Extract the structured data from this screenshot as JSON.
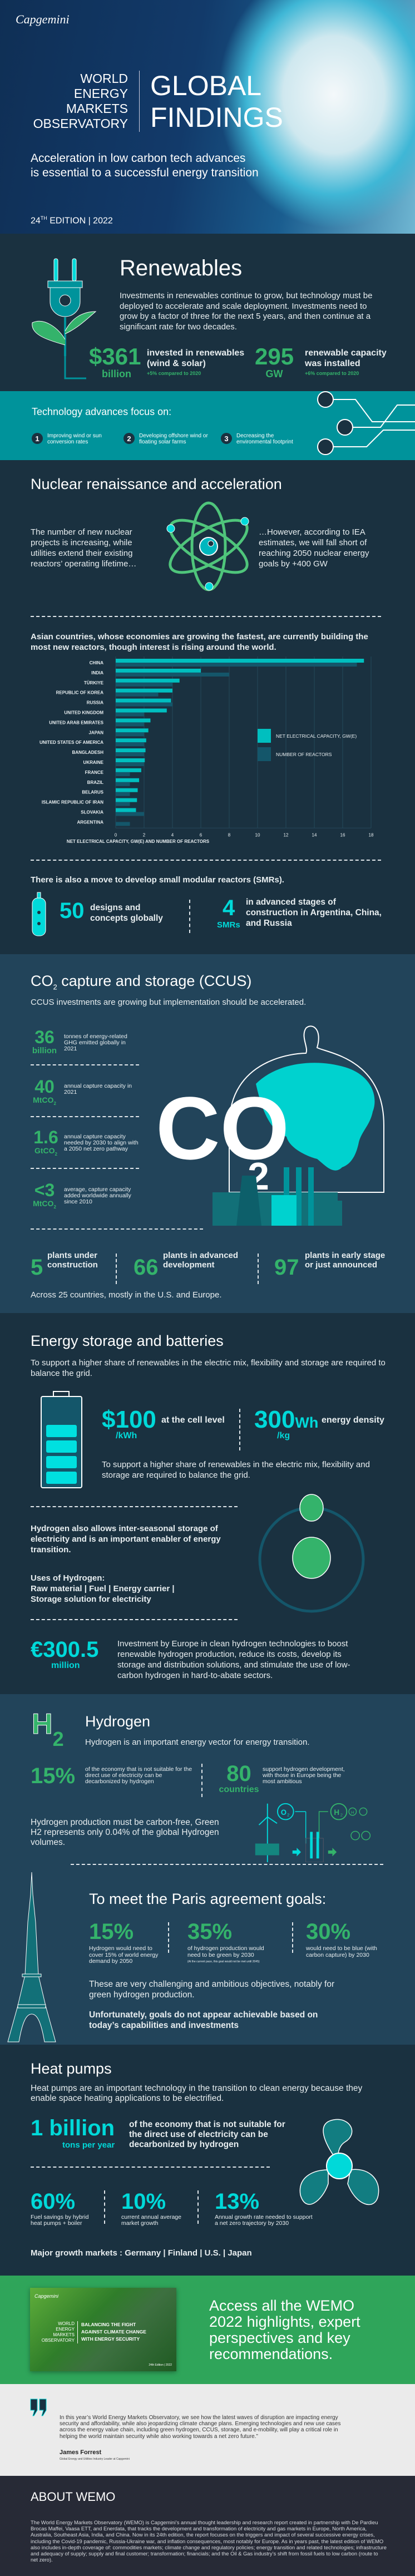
{
  "hero": {
    "logo": "Capgemini",
    "observatory_lines": [
      "WORLD",
      "ENERGY",
      "MARKETS",
      "OBSERVATORY"
    ],
    "title_lines": [
      "GLOBAL",
      "FINDINGS"
    ],
    "subtitle_lines": [
      "Acceleration in low carbon tech advances",
      "is essential to a successful energy transition"
    ],
    "edition_num": "24",
    "edition_sup": "TH",
    "edition_rest": " EDITION | 2022"
  },
  "renewables": {
    "title": "Renewables",
    "body": "Investments in renewables continue to grow, but technology must be deployed to accelerate and scale deployment. Investments need to grow by a factor of three for the next 5 years, and then continue at a significant rate for two decades.",
    "stats": [
      {
        "value": "$361",
        "unit": "billion",
        "label": "invested in renewables (wind & solar)",
        "note": "+5% compared to 2020"
      },
      {
        "value": "295",
        "unit": "GW",
        "label": "renewable capacity was installed",
        "note": "+6% compared to 2020"
      }
    ]
  },
  "tech": {
    "heading": "Technology advances focus on:",
    "items": [
      {
        "num": "1",
        "text": "Improving wind or sun conversion rates"
      },
      {
        "num": "2",
        "text": "Developing offshore wind or floating solar farms"
      },
      {
        "num": "3",
        "text": "Decreasing the environmental footprint"
      }
    ]
  },
  "nuclear": {
    "title": "Nuclear renaissance and acceleration",
    "left_text": "The number of new nuclear projects is increasing, while utilities extend their existing reactors’ operating lifetime…",
    "right_text": "…However, according to IEA estimates, we will fall short of reaching 2050 nuclear energy goals by +400 GW",
    "asia_text": "Asian countries, whose economies are growing the fastest, are currently building the most new reactors, though interest is rising around the world.",
    "smr_intro": "There is also a move to develop small modular reactors (SMRs).",
    "smr_stats": [
      {
        "value": "50",
        "unit": "",
        "label": "designs and concepts globally"
      },
      {
        "value": "4",
        "unit": "SMRs",
        "label": "in advanced stages of construction in Argentina, China, and Russia"
      }
    ]
  },
  "chart_data": {
    "type": "bar",
    "orientation": "horizontal",
    "categories": [
      "CHINA",
      "INDIA",
      "TÜRKIYE",
      "REPUBLIC OF KOREA",
      "RUSSIA",
      "UNITED KINGDOM",
      "UNITED ARAB EMIRATES",
      "JAPAN",
      "UNITED STATES OF AMERICA",
      "BANGLADESH",
      "UKRAINE",
      "FRANCE",
      "BRAZIL",
      "BELARUS",
      "ISLAMIC REPUBLIC OF IRAN",
      "SLOVAKIA",
      "ARGENTINA"
    ],
    "series": [
      {
        "name": "NET ELECTRICAL CAPACITY, GW(E)",
        "color": "#00bfbf",
        "values": [
          17.5,
          6.0,
          4.5,
          4.0,
          3.9,
          3.6,
          2.45,
          2.3,
          2.15,
          2.1,
          2.05,
          1.8,
          1.65,
          1.55,
          1.5,
          1.43,
          0
        ]
      },
      {
        "name": "NUMBER OF REACTORS",
        "color": "#14566a",
        "values": [
          17,
          8,
          4,
          3,
          4,
          2,
          2,
          2,
          2,
          2,
          2,
          1,
          1,
          1,
          1,
          2,
          1
        ]
      }
    ],
    "xlabel": "NET ELECTRICAL CAPACITY, GW(E) AND NUMBER OF REACTORS",
    "xlim": [
      0,
      18
    ],
    "xticks": [
      "0",
      "2",
      "4",
      "6",
      "8",
      "10",
      "12",
      "14",
      "16",
      "18"
    ],
    "grid": true,
    "legend": "right"
  },
  "ccus": {
    "title_pre": "CO",
    "title_sub": "2",
    "title_post": " capture and storage (CCUS)",
    "subtitle": "CCUS investments are growing but implementation should be accelerated.",
    "stats": [
      {
        "value": "36",
        "unit": "billion",
        "unit_sub": "",
        "label": "tonnes of energy-related GHG emitted globally in 2021"
      },
      {
        "value": "40",
        "unit": "MtCO",
        "unit_sub": "2",
        "label": "annual capture capacity in 2021"
      },
      {
        "value": "1.6",
        "unit": "GtCO",
        "unit_sub": "2",
        "label": "annual capture capacity needed by 2030 to align with a 2050 net zero pathway"
      },
      {
        "value": "<3",
        "unit": "MtCO",
        "unit_sub": "2",
        "label": "average, capture capacity added worldwide annually since 2010"
      }
    ],
    "graphic_text": "CO",
    "graphic_sub": "2",
    "plants": [
      {
        "value": "5",
        "label": "plants under construction"
      },
      {
        "value": "66",
        "label": "plants in advanced development"
      },
      {
        "value": "97",
        "label": "plants in early stage or just announced"
      }
    ],
    "footer": "Across 25 countries, mostly in the U.S. and Europe."
  },
  "storage": {
    "title": "Energy storage and batteries",
    "intro": "To support a higher share of renewables in the electric mix, flexibility and storage are required to balance the grid.",
    "stats": [
      {
        "value": "$100",
        "unit": "/kWh",
        "label": "at the cell level"
      },
      {
        "value": "300",
        "value_suffix": "Wh",
        "unit": "/kg",
        "label": "energy density"
      }
    ],
    "battery_text": "To support a higher share of renewables in the electric mix, flexibility and storage are required to balance the grid.",
    "battery_level": 0.8,
    "hydrogen_text": "Hydrogen also allows inter-seasonal storage of electricity and is an important enabler of energy transition.",
    "uses_title": "Uses of Hydrogen:",
    "uses_line1": "Raw material | Fuel | Energy carrier |",
    "uses_line2": "Storage solution for electricity",
    "eu_value": "€300.5",
    "eu_unit": "million",
    "eu_text": "Investment by Europe in clean hydrogen technologies to boost renewable hydrogen production, reduce its costs, develop its storage and distribution solutions, and stimulate the use of low-carbon hydrogen in hard-to-abate sectors."
  },
  "hydrogen": {
    "icon_letter": "H",
    "icon_sub": "2",
    "title": "Hydrogen",
    "desc": "Hydrogen is an important energy vector for energy transition.",
    "stats": [
      {
        "value": "15%",
        "unit": "",
        "label": "of the economy that is not suitable for the direct use of electricity can be decarbonized by hydrogen"
      },
      {
        "value": "80",
        "unit": "countries",
        "label": "support hydrogen development, with those in Europe being the most ambitious"
      }
    ],
    "production_text": "Hydrogen production must be carbon-free, Green H2 represents only 0.04% of the global Hydrogen volumes.",
    "diagram_labels": {
      "o2": "O",
      "o2_sub": "2",
      "h2": "H",
      "h2_sub": "2",
      "atom": "H"
    },
    "paris_title": "To meet the Paris agreement goals:",
    "paris_stats": [
      {
        "value": "15%",
        "label": "Hydrogen would need to cover 15% of world energy demand by 2050",
        "note": ""
      },
      {
        "value": "35%",
        "label": "of hydrogen production would need to be green by 2030",
        "note": "(At the current pace, this goal would not be met until 2045)"
      },
      {
        "value": "30%",
        "label": "would need to be blue (with carbon capture) by 2030",
        "note": ""
      }
    ],
    "challenge_text": "These are very challenging and ambitious objectives, notably for green hydrogen production.",
    "unfortunately_text": "Unfortunately, goals do not appear achievable based on today’s capabilities and investments"
  },
  "heat": {
    "title": "Heat pumps",
    "intro": "Heat pumps are an important technology in the transition to clean energy because they enable space heating applications to be electrified.",
    "big_value": "1 billion",
    "big_unit": "tons per year",
    "big_label": "of the economy that is not suitable for the direct use of electricity can be decarbonized by hydrogen",
    "stats": [
      {
        "value": "60%",
        "label": "Fuel savings by hybrid heat pumps + boiler"
      },
      {
        "value": "10%",
        "label": "current annual average market growth"
      },
      {
        "value": "13%",
        "label": "Annual growth rate needed to support a net zero trajectory by 2030"
      }
    ],
    "markets": "Major growth markets : Germany | Finland | U.S. | Japan"
  },
  "cta": {
    "cover_logo": "Capgemini",
    "cover_left": [
      "WORLD",
      "ENERGY",
      "MARKETS",
      "OBSERVATORY"
    ],
    "cover_right": [
      "BALANCING THE FIGHT",
      "AGAINST CLIMATE CHANGE",
      "WITH ENERGY SECURITY"
    ],
    "cover_edition": "24th Edition | 2022",
    "text": "Access all the WEMO 2022 highlights, expert perspectives and key recommendations."
  },
  "quote": {
    "text": "In this year’s World Energy Markets Observatory, we see how the latest waves of disruption are impacting energy security and affordability, while also jeopardizing climate change plans. Emerging technologies and new use cases across the energy value chain, including green hydrogen, CCUS, storage, and e-mobility, will play a critical role in helping the world maintain security while also working towards a net zero future.”",
    "author": "James Forrest",
    "role": "Global Energy and Utilities Industry Leader at Capgemini"
  },
  "about": {
    "title": "ABOUT WEMO",
    "text": "The World Energy Markets Observatory (WEMO) is Capgemini’s annual thought leadership and research report created in partnership with De Pardieu Brocas Maffei, Vaasa ETT, and Enerdata, that tracks the development and transformation of electricity and gas markets in Europe, North America, Australia, Southeast Asia, India, and China. Now in its 24th edition, the report focuses on the triggers and impact of several successive energy crises, including the Covid-19 pandemic, Russia-Ukraine war, and inflation consequences, most notably for Europe. As in years past, the latest edition of WEMO also includes in-depth coverage of: commodities markets; climate change and regulatory policies; energy transition and related technologies; infrastructure and adequacy of supply; supply and final customer; transformation; financials; and the Oil & Gas industry’s shift from fossil fuels to low carbon (route to net zero)."
  }
}
